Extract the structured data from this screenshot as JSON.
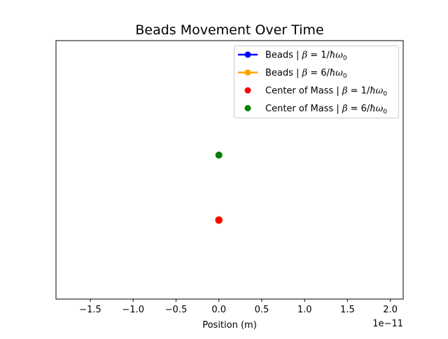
{
  "chart_data": {
    "type": "scatter",
    "title": "Beads Movement Over Time",
    "xlabel": "Position (m)",
    "ylabel": "",
    "x_offset_text": "1e−11",
    "xlim": [
      -1.9,
      2.15
    ],
    "ylim": [
      -2.07,
      1.43
    ],
    "xticks": [
      -1.5,
      -1.0,
      -0.5,
      0.0,
      0.5,
      1.0,
      1.5,
      2.0
    ],
    "xtick_labels": [
      "−1.5",
      "−1.0",
      "−0.5",
      "0.0",
      "0.5",
      "1.0",
      "1.5",
      "2.0"
    ],
    "y_axis_visible": false,
    "grid": false,
    "legend_position": "top-right",
    "series": [
      {
        "name": "Beads | β = 1/ħω₀",
        "legend_prefix": "Beads | ",
        "kind": "line-marker",
        "color": "#0000ff",
        "x": [
          0.0
        ],
        "y": [
          -1.0
        ]
      },
      {
        "name": "Beads | β = 6/ħω₀",
        "legend_prefix": "Beads | ",
        "kind": "line-marker",
        "color": "#ffa500",
        "x": [
          0.0
        ],
        "y": [
          -1.0
        ]
      },
      {
        "name": "Center of Mass | β = 1/ħω₀",
        "legend_prefix": "Center of Mass | ",
        "kind": "marker",
        "color": "#ff0000",
        "x": [
          0.0
        ],
        "y": [
          -1.0
        ]
      },
      {
        "name": "Center of Mass | β = 6/ħω₀",
        "legend_prefix": "Center of Mass | ",
        "kind": "marker",
        "color": "#008000",
        "x": [
          0.0
        ],
        "y": [
          -0.12
        ]
      }
    ]
  }
}
